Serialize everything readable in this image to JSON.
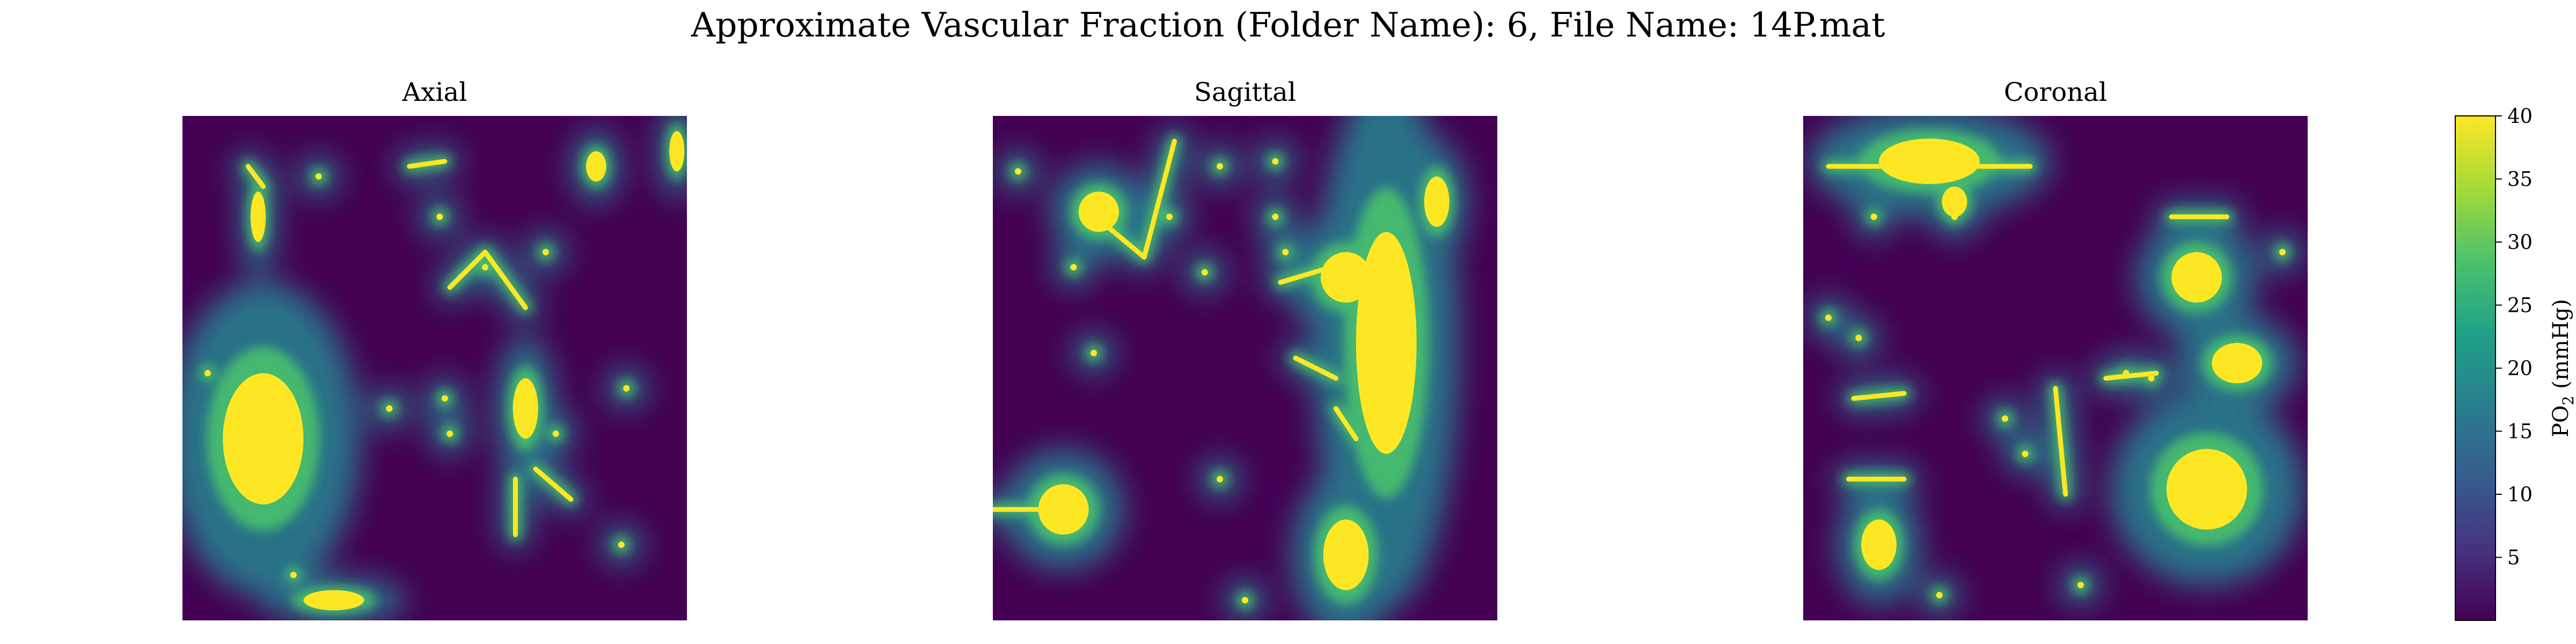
{
  "figure": {
    "title": "Approximate Vascular Fraction (Folder Name): 6, File Name: 14P.mat"
  },
  "chart_data": {
    "type": "heatmap",
    "title": "Approximate Vascular Fraction (Folder Name): 6, File Name: 14P.mat",
    "colormap": "viridis",
    "colormap_stops": [
      "#440154",
      "#46327e",
      "#365c8d",
      "#277f8e",
      "#1fa187",
      "#4ac16d",
      "#a0da39",
      "#fde725"
    ],
    "vmin": 0,
    "vmax": 40,
    "panels": [
      {
        "title": "Axial",
        "blobs": [
          {
            "x": 0.16,
            "y": 0.64,
            "rx": 0.08,
            "ry": 0.13
          },
          {
            "x": 0.68,
            "y": 0.58,
            "rx": 0.025,
            "ry": 0.06
          },
          {
            "x": 0.15,
            "y": 0.2,
            "rx": 0.015,
            "ry": 0.05
          },
          {
            "x": 0.82,
            "y": 0.1,
            "rx": 0.02,
            "ry": 0.03
          },
          {
            "x": 0.98,
            "y": 0.07,
            "rx": 0.015,
            "ry": 0.04
          },
          {
            "x": 0.3,
            "y": 0.96,
            "rx": 0.06,
            "ry": 0.02
          }
        ],
        "segments": [
          {
            "x1": 0.53,
            "y1": 0.34,
            "x2": 0.6,
            "y2": 0.27
          },
          {
            "x1": 0.6,
            "y1": 0.27,
            "x2": 0.68,
            "y2": 0.38
          },
          {
            "x1": 0.66,
            "y1": 0.72,
            "x2": 0.66,
            "y2": 0.83
          },
          {
            "x1": 0.7,
            "y1": 0.7,
            "x2": 0.77,
            "y2": 0.76
          },
          {
            "x1": 0.45,
            "y1": 0.1,
            "x2": 0.52,
            "y2": 0.09
          },
          {
            "x1": 0.13,
            "y1": 0.1,
            "x2": 0.16,
            "y2": 0.14
          }
        ],
        "dots": [
          {
            "x": 0.27,
            "y": 0.12
          },
          {
            "x": 0.51,
            "y": 0.2
          },
          {
            "x": 0.6,
            "y": 0.3
          },
          {
            "x": 0.72,
            "y": 0.27
          },
          {
            "x": 0.52,
            "y": 0.56
          },
          {
            "x": 0.88,
            "y": 0.54
          },
          {
            "x": 0.05,
            "y": 0.51
          },
          {
            "x": 0.74,
            "y": 0.63
          },
          {
            "x": 0.53,
            "y": 0.63
          },
          {
            "x": 0.87,
            "y": 0.85
          },
          {
            "x": 0.22,
            "y": 0.91
          },
          {
            "x": 0.41,
            "y": 0.58
          }
        ]
      },
      {
        "title": "Sagittal",
        "blobs": [
          {
            "x": 0.78,
            "y": 0.45,
            "rx": 0.06,
            "ry": 0.22
          },
          {
            "x": 0.7,
            "y": 0.32,
            "rx": 0.05,
            "ry": 0.05
          },
          {
            "x": 0.14,
            "y": 0.78,
            "rx": 0.05,
            "ry": 0.05
          },
          {
            "x": 0.7,
            "y": 0.87,
            "rx": 0.045,
            "ry": 0.07
          },
          {
            "x": 0.88,
            "y": 0.17,
            "rx": 0.025,
            "ry": 0.05
          },
          {
            "x": 0.21,
            "y": 0.19,
            "rx": 0.04,
            "ry": 0.04
          }
        ],
        "segments": [
          {
            "x1": 0.18,
            "y1": 0.18,
            "x2": 0.3,
            "y2": 0.28
          },
          {
            "x1": 0.3,
            "y1": 0.28,
            "x2": 0.36,
            "y2": 0.05
          },
          {
            "x1": 0.6,
            "y1": 0.48,
            "x2": 0.68,
            "y2": 0.52
          },
          {
            "x1": 0.68,
            "y1": 0.58,
            "x2": 0.72,
            "y2": 0.64
          },
          {
            "x1": 0.0,
            "y1": 0.78,
            "x2": 0.1,
            "y2": 0.78
          },
          {
            "x1": 0.57,
            "y1": 0.33,
            "x2": 0.67,
            "y2": 0.3
          }
        ],
        "dots": [
          {
            "x": 0.45,
            "y": 0.1
          },
          {
            "x": 0.56,
            "y": 0.09
          },
          {
            "x": 0.58,
            "y": 0.27
          },
          {
            "x": 0.35,
            "y": 0.2
          },
          {
            "x": 0.16,
            "y": 0.3
          },
          {
            "x": 0.42,
            "y": 0.31
          },
          {
            "x": 0.2,
            "y": 0.47
          },
          {
            "x": 0.45,
            "y": 0.72
          },
          {
            "x": 0.5,
            "y": 0.96
          },
          {
            "x": 0.05,
            "y": 0.11
          },
          {
            "x": 0.56,
            "y": 0.2
          }
        ]
      },
      {
        "title": "Coronal",
        "blobs": [
          {
            "x": 0.25,
            "y": 0.09,
            "rx": 0.1,
            "ry": 0.045
          },
          {
            "x": 0.8,
            "y": 0.74,
            "rx": 0.08,
            "ry": 0.08
          },
          {
            "x": 0.86,
            "y": 0.49,
            "rx": 0.05,
            "ry": 0.04
          },
          {
            "x": 0.78,
            "y": 0.32,
            "rx": 0.05,
            "ry": 0.05
          },
          {
            "x": 0.15,
            "y": 0.85,
            "rx": 0.035,
            "ry": 0.05
          },
          {
            "x": 0.3,
            "y": 0.17,
            "rx": 0.025,
            "ry": 0.03
          }
        ],
        "segments": [
          {
            "x1": 0.05,
            "y1": 0.1,
            "x2": 0.45,
            "y2": 0.1
          },
          {
            "x1": 0.5,
            "y1": 0.54,
            "x2": 0.52,
            "y2": 0.75
          },
          {
            "x1": 0.6,
            "y1": 0.52,
            "x2": 0.7,
            "y2": 0.51
          },
          {
            "x1": 0.73,
            "y1": 0.2,
            "x2": 0.84,
            "y2": 0.2
          },
          {
            "x1": 0.1,
            "y1": 0.56,
            "x2": 0.2,
            "y2": 0.55
          },
          {
            "x1": 0.09,
            "y1": 0.72,
            "x2": 0.2,
            "y2": 0.72
          }
        ],
        "dots": [
          {
            "x": 0.14,
            "y": 0.2
          },
          {
            "x": 0.05,
            "y": 0.4
          },
          {
            "x": 0.3,
            "y": 0.2
          },
          {
            "x": 0.4,
            "y": 0.6
          },
          {
            "x": 0.44,
            "y": 0.67
          },
          {
            "x": 0.27,
            "y": 0.95
          },
          {
            "x": 0.55,
            "y": 0.93
          },
          {
            "x": 0.64,
            "y": 0.51
          },
          {
            "x": 0.95,
            "y": 0.27
          },
          {
            "x": 0.69,
            "y": 0.52
          },
          {
            "x": 0.11,
            "y": 0.44
          }
        ]
      }
    ],
    "colorbar": {
      "label_main": "PO",
      "label_sub": "2",
      "label_unit": " (mmHg)",
      "ticks": [
        5,
        10,
        15,
        20,
        25,
        30,
        35,
        40
      ],
      "range": [
        0,
        40
      ]
    }
  }
}
